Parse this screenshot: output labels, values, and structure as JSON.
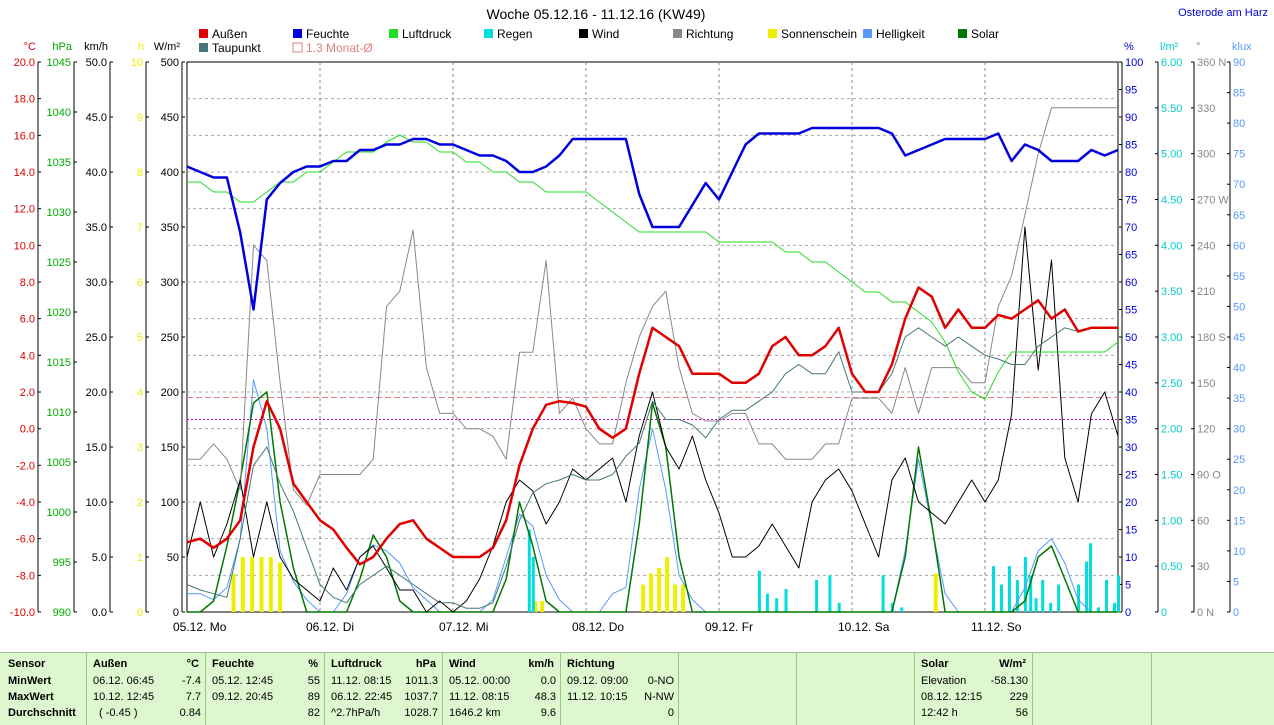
{
  "title": "Woche 05.12.16 - 11.12.16 (KW49)",
  "location": "Osterode am Harz",
  "colors": {
    "aussen": "#e00000",
    "feuchte": "#0000dd",
    "luftdruck": "#22dd22",
    "regen": "#00dddd",
    "wind": "#000000",
    "richtung": "#888888",
    "sonnenschein": "#eeee00",
    "helligkeit": "#5599ff",
    "solar": "#007700",
    "taupunkt": "#447777",
    "monat": "#e08080"
  },
  "legend": [
    {
      "key": "aussen",
      "label": "Außen"
    },
    {
      "key": "feuchte",
      "label": "Feuchte"
    },
    {
      "key": "luftdruck",
      "label": "Luftdruck"
    },
    {
      "key": "regen",
      "label": "Regen"
    },
    {
      "key": "wind",
      "label": "Wind"
    },
    {
      "key": "richtung",
      "label": "Richtung"
    },
    {
      "key": "sonnenschein",
      "label": "Sonnenschein"
    },
    {
      "key": "helligkeit",
      "label": "Helligkeit"
    },
    {
      "key": "solar",
      "label": "Solar"
    },
    {
      "key": "taupunkt",
      "label": "Taupunkt"
    },
    {
      "key": "monat",
      "label": "1.3 Monat-Ø"
    }
  ],
  "axes_left": [
    {
      "unit": "°C",
      "color": "#e00000",
      "ticks": [
        "20.0",
        "18.0",
        "16.0",
        "14.0",
        "12.0",
        "10.0",
        "8.0",
        "6.0",
        "4.0",
        "2.0",
        "0.0",
        "-2.0",
        "-4.0",
        "-6.0",
        "-8.0",
        "-10.0"
      ]
    },
    {
      "unit": "hPa",
      "color": "#00aa00",
      "ticks": [
        "1045",
        "1040",
        "1035",
        "1030",
        "1025",
        "1020",
        "1015",
        "1010",
        "1005",
        "1000",
        "995",
        "990"
      ]
    },
    {
      "unit": "km/h",
      "color": "#000000",
      "ticks": [
        "50.0",
        "45.0",
        "40.0",
        "35.0",
        "30.0",
        "25.0",
        "20.0",
        "15.0",
        "10.0",
        "5.0",
        "0.0"
      ]
    },
    {
      "unit": "h",
      "color": "#eeee00",
      "ticks": [
        "10",
        "9",
        "8",
        "7",
        "6",
        "5",
        "4",
        "3",
        "2",
        "1",
        "0"
      ]
    },
    {
      "unit": "W/m²",
      "color": "#000000",
      "ticks": [
        "500",
        "450",
        "400",
        "350",
        "300",
        "250",
        "200",
        "150",
        "100",
        "50",
        "0"
      ]
    }
  ],
  "axes_right": [
    {
      "unit": "%",
      "color": "#0000dd",
      "ticks": [
        "100",
        "95",
        "90",
        "85",
        "80",
        "75",
        "70",
        "65",
        "60",
        "55",
        "50",
        "45",
        "40",
        "35",
        "30",
        "25",
        "20",
        "15",
        "10",
        "5",
        "0"
      ]
    },
    {
      "unit": "l/m²",
      "color": "#00cccc",
      "ticks": [
        "6.00",
        "5.50",
        "5.00",
        "4.50",
        "4.00",
        "3.50",
        "3.00",
        "2.50",
        "2.00",
        "1.50",
        "1.00",
        "0.50",
        "0"
      ]
    },
    {
      "unit": "°",
      "color": "#888888",
      "ticks": [
        "360 N",
        "330",
        "300",
        "270 W",
        "240",
        "210",
        "180 S",
        "150",
        "120",
        "90 O",
        "60",
        "30",
        "0  N"
      ]
    },
    {
      "unit": "klux",
      "color": "#5599ff",
      "ticks": [
        "90",
        "85",
        "80",
        "75",
        "70",
        "65",
        "60",
        "55",
        "50",
        "45",
        "40",
        "35",
        "30",
        "25",
        "20",
        "15",
        "10",
        "5",
        "0"
      ]
    }
  ],
  "days": [
    "05.12. Mo",
    "06.12. Di",
    "07.12. Mi",
    "08.12. Do",
    "09.12. Fr",
    "10.12. Sa",
    "11.12. So"
  ],
  "chart_data": {
    "type": "line",
    "title": "Woche 05.12.16 - 11.12.16 (KW49)",
    "x": [
      0,
      0.1,
      0.2,
      0.3,
      0.4,
      0.5,
      0.6,
      0.7,
      0.8,
      0.9,
      1.0,
      1.1,
      1.2,
      1.3,
      1.4,
      1.5,
      1.6,
      1.7,
      1.8,
      1.9,
      2.0,
      2.1,
      2.2,
      2.3,
      2.4,
      2.5,
      2.6,
      2.7,
      2.8,
      2.9,
      3.0,
      3.1,
      3.2,
      3.3,
      3.4,
      3.5,
      3.6,
      3.7,
      3.8,
      3.9,
      4.0,
      4.1,
      4.2,
      4.3,
      4.4,
      4.5,
      4.6,
      4.7,
      4.8,
      4.9,
      5.0,
      5.1,
      5.2,
      5.3,
      5.4,
      5.5,
      5.6,
      5.7,
      5.8,
      5.9,
      6.0,
      6.1,
      6.2,
      6.3,
      6.4,
      6.5,
      6.6,
      6.7,
      6.8,
      6.9,
      7.0
    ],
    "xlabel": "",
    "series": [
      {
        "name": "Außen",
        "unit": "°C",
        "axis": "temp",
        "values": [
          -6.2,
          -6.0,
          -6.5,
          -6.0,
          -5.0,
          -1.0,
          1.5,
          0.0,
          -3.0,
          -4.0,
          -5.0,
          -5.5,
          -6.5,
          -7.4,
          -7.0,
          -6.0,
          -5.2,
          -5.0,
          -6.0,
          -6.5,
          -7.0,
          -7.0,
          -7.0,
          -6.5,
          -5.0,
          -2.0,
          0.0,
          1.3,
          1.5,
          1.4,
          1.2,
          0.0,
          -0.5,
          0.0,
          3.0,
          5.5,
          5.0,
          4.5,
          3.0,
          3.0,
          3.0,
          2.5,
          2.5,
          3.0,
          4.5,
          5.0,
          4.0,
          4.0,
          4.5,
          5.5,
          3.0,
          2.0,
          2.0,
          3.5,
          6.0,
          7.7,
          7.2,
          5.5,
          6.5,
          5.5,
          5.5,
          6.2,
          6.0,
          6.5,
          7.0,
          6.0,
          6.5,
          5.3,
          5.5,
          5.5,
          5.5
        ]
      },
      {
        "name": "Taupunkt",
        "unit": "°C",
        "axis": "temp",
        "values": [
          -8.5,
          -8.8,
          -9.0,
          -9.2,
          -6.0,
          -2.0,
          -1.0,
          -3.0,
          -4.5,
          -6.5,
          -8.5,
          -9.2,
          -9.5,
          -8.5,
          -8.0,
          -7.5,
          -8.0,
          -8.5,
          -9.0,
          -9.5,
          -9.5,
          -9.8,
          -9.8,
          -9.5,
          -7.5,
          -5.0,
          -3.5,
          -3.0,
          -2.8,
          -2.5,
          -2.8,
          -2.8,
          -2.5,
          -1.5,
          -0.8,
          1.5,
          0.5,
          0.5,
          0.2,
          -0.5,
          0.5,
          1.0,
          1.0,
          1.5,
          2.0,
          3.0,
          3.5,
          3.0,
          3.0,
          4.2,
          2.0,
          2.0,
          2.0,
          3.0,
          5.0,
          5.5,
          5.0,
          4.5,
          5.0,
          4.5,
          4.0,
          3.8,
          3.5,
          3.5,
          4.5,
          5.0,
          5.5,
          5.3,
          5.5,
          5.5,
          5.5
        ]
      },
      {
        "name": "Feuchte",
        "unit": "%",
        "axis": "hum",
        "values": [
          81,
          80,
          79,
          79,
          69,
          55,
          75,
          78,
          80,
          81,
          81,
          82,
          82,
          84,
          84,
          85,
          85,
          86,
          86,
          85,
          85,
          84,
          83,
          83,
          82,
          80,
          80,
          81,
          83,
          86,
          86,
          86,
          86,
          86,
          76,
          70,
          70,
          70,
          74,
          78,
          75,
          80,
          85,
          87,
          87,
          87,
          87,
          88,
          88,
          88,
          88,
          88,
          88,
          87,
          83,
          84,
          85,
          86,
          86,
          86,
          86,
          87,
          82,
          85,
          84,
          82,
          82,
          82,
          84,
          83,
          84
        ]
      },
      {
        "name": "Luftdruck",
        "unit": "hPa",
        "axis": "hpa",
        "values": [
          1033,
          1033,
          1032,
          1032,
          1031,
          1031,
          1032,
          1033,
          1033,
          1034,
          1034,
          1035,
          1036,
          1036,
          1036,
          1037,
          1037.7,
          1037,
          1037,
          1036,
          1036,
          1035,
          1035,
          1034,
          1034,
          1033,
          1033,
          1032,
          1032,
          1032,
          1032,
          1031,
          1030,
          1029,
          1028,
          1028,
          1028,
          1028,
          1028,
          1028,
          1027,
          1027,
          1027,
          1027,
          1027,
          1026,
          1026,
          1025,
          1025,
          1024,
          1023,
          1022,
          1022,
          1021,
          1021,
          1020,
          1019,
          1017,
          1014,
          1012,
          1011.3,
          1014,
          1016,
          1016,
          1016,
          1016,
          1016,
          1016,
          1016,
          1016,
          1017
        ]
      },
      {
        "name": "Wind",
        "unit": "km/h",
        "axis": "wind",
        "values": [
          5,
          10,
          5,
          8,
          12,
          5,
          10,
          5,
          3,
          2,
          1,
          4,
          2,
          5,
          6,
          4,
          2,
          2,
          0,
          1,
          0,
          1,
          3,
          6,
          10,
          12,
          11,
          8,
          10,
          13,
          12,
          13,
          14,
          10,
          16,
          20,
          15,
          13,
          16,
          12,
          9,
          5,
          5,
          6,
          8,
          6,
          4,
          10,
          12,
          13,
          11,
          8,
          5,
          12,
          14,
          10,
          9,
          8,
          10,
          12,
          10,
          12,
          18,
          35,
          22,
          32,
          14,
          10,
          18,
          20,
          16
        ]
      },
      {
        "name": "Richtung",
        "unit": "°",
        "axis": "dir",
        "values": [
          100,
          100,
          110,
          100,
          80,
          240,
          230,
          150,
          80,
          70,
          90,
          90,
          90,
          90,
          100,
          200,
          210,
          250,
          160,
          130,
          130,
          120,
          120,
          115,
          100,
          170,
          170,
          230,
          130,
          140,
          120,
          110,
          110,
          150,
          180,
          200,
          210,
          160,
          130,
          125,
          125,
          130,
          130,
          110,
          110,
          100,
          100,
          100,
          110,
          110,
          140,
          140,
          140,
          130,
          160,
          130,
          160,
          160,
          160,
          150,
          150,
          200,
          220,
          260,
          300,
          330,
          330,
          330,
          330,
          330,
          330
        ]
      },
      {
        "name": "Solar",
        "unit": "W/m²",
        "axis": "solar",
        "values": [
          0,
          0,
          10,
          60,
          120,
          190,
          200,
          100,
          40,
          0,
          0,
          0,
          0,
          30,
          70,
          50,
          10,
          0,
          0,
          0,
          0,
          0,
          0,
          0,
          30,
          100,
          60,
          10,
          0,
          0,
          0,
          0,
          0,
          0,
          80,
          190,
          150,
          50,
          0,
          0,
          0,
          0,
          0,
          0,
          0,
          0,
          0,
          0,
          0,
          0,
          0,
          0,
          0,
          0,
          50,
          150,
          80,
          0,
          0,
          0,
          0,
          0,
          0,
          10,
          50,
          60,
          30,
          0,
          0,
          0,
          0
        ]
      },
      {
        "name": "Helligkeit",
        "unit": "klux",
        "axis": "lux",
        "values": [
          3,
          3,
          2,
          4,
          12,
          38,
          30,
          10,
          5,
          2,
          0,
          0,
          3,
          9,
          11,
          10,
          8,
          4,
          2,
          0,
          0,
          0,
          0,
          2,
          9,
          16,
          14,
          6,
          2,
          0,
          0,
          0,
          3,
          4,
          20,
          30,
          20,
          6,
          2,
          0,
          0,
          0,
          0,
          0,
          0,
          0,
          0,
          0,
          0,
          0,
          0,
          0,
          0,
          0,
          10,
          25,
          14,
          3,
          0,
          0,
          0,
          0,
          0,
          4,
          10,
          12,
          8,
          2,
          0,
          0,
          0
        ]
      }
    ],
    "monat_temp": 1.7,
    "monat_hum": 35,
    "sonnenschein": [
      {
        "day": 0.35,
        "h": 0.7
      },
      {
        "day": 0.42,
        "h": 1.0
      },
      {
        "day": 0.49,
        "h": 1.0
      },
      {
        "day": 0.56,
        "h": 1.0
      },
      {
        "day": 0.63,
        "h": 1.0
      },
      {
        "day": 0.7,
        "h": 0.9
      },
      {
        "day": 2.62,
        "h": 0.2
      },
      {
        "day": 2.67,
        "h": 0.2
      },
      {
        "day": 3.43,
        "h": 0.5
      },
      {
        "day": 3.49,
        "h": 0.7
      },
      {
        "day": 3.55,
        "h": 0.8
      },
      {
        "day": 3.61,
        "h": 1.0
      },
      {
        "day": 3.67,
        "h": 0.5
      },
      {
        "day": 3.73,
        "h": 0.5
      },
      {
        "day": 5.63,
        "h": 0.7
      }
    ],
    "regen": [
      {
        "day": 2.57,
        "v": 0.9
      },
      {
        "day": 2.6,
        "v": 0.6
      },
      {
        "day": 4.3,
        "v": 0.45
      },
      {
        "day": 4.36,
        "v": 0.2
      },
      {
        "day": 4.43,
        "v": 0.15
      },
      {
        "day": 4.5,
        "v": 0.25
      },
      {
        "day": 4.73,
        "v": 0.35
      },
      {
        "day": 4.83,
        "v": 0.4
      },
      {
        "day": 4.9,
        "v": 0.1
      },
      {
        "day": 5.23,
        "v": 0.4
      },
      {
        "day": 5.3,
        "v": 0.1
      },
      {
        "day": 5.37,
        "v": 0.05
      },
      {
        "day": 6.06,
        "v": 0.5
      },
      {
        "day": 6.12,
        "v": 0.3
      },
      {
        "day": 6.18,
        "v": 0.5
      },
      {
        "day": 6.24,
        "v": 0.35
      },
      {
        "day": 6.3,
        "v": 0.6
      },
      {
        "day": 6.34,
        "v": 0.4
      },
      {
        "day": 6.38,
        "v": 0.15
      },
      {
        "day": 6.43,
        "v": 0.35
      },
      {
        "day": 6.49,
        "v": 0.1
      },
      {
        "day": 6.55,
        "v": 0.3
      },
      {
        "day": 6.7,
        "v": 0.3
      },
      {
        "day": 6.76,
        "v": 0.55
      },
      {
        "day": 6.79,
        "v": 0.75
      },
      {
        "day": 6.85,
        "v": 0.05
      },
      {
        "day": 6.91,
        "v": 0.35
      },
      {
        "day": 6.97,
        "v": 0.1
      },
      {
        "day": 7.0,
        "v": 0.4
      }
    ]
  },
  "stats": {
    "sensor": {
      "h": "Sensor",
      "rows": [
        "MinWert",
        "MaxWert",
        "Durchschnitt"
      ]
    },
    "aussen": {
      "h": "Außen",
      "unit": "°C",
      "rows": [
        [
          "06.12.  06:45",
          "-7.4"
        ],
        [
          "10.12.  12:45",
          "7.7"
        ],
        [
          "( -0.45 )",
          "0.84"
        ]
      ]
    },
    "feuchte": {
      "h": "Feuchte",
      "unit": "%",
      "rows": [
        [
          "05.12.  12:45",
          "55"
        ],
        [
          "09.12.  20:45",
          "89"
        ],
        [
          "",
          "82"
        ]
      ]
    },
    "luftdruck": {
      "h": "Luftdruck",
      "unit": "hPa",
      "rows": [
        [
          "11.12.  08:15",
          "1011.3"
        ],
        [
          "06.12.  22:45",
          "1037.7"
        ],
        [
          "^2.7hPa/h",
          "1028.7"
        ]
      ]
    },
    "wind": {
      "h": "Wind",
      "unit": "km/h",
      "rows": [
        [
          "05.12.  00:00",
          "0.0"
        ],
        [
          "11.12.  08:15",
          "48.3"
        ],
        [
          "1646.2 km",
          "9.6"
        ]
      ]
    },
    "richtung": {
      "h": "Richtung",
      "rows": [
        [
          "09.12.  09:00",
          "0-NO"
        ],
        [
          "11.12.  10:15",
          "N-NW"
        ],
        [
          "",
          "0"
        ]
      ]
    },
    "solar": {
      "h": "Solar",
      "unit": "W/m²",
      "rows": [
        [
          "Elevation",
          "-58.130"
        ],
        [
          "08.12.  12:15",
          "229"
        ],
        [
          "12:42 h",
          "56"
        ]
      ]
    }
  }
}
